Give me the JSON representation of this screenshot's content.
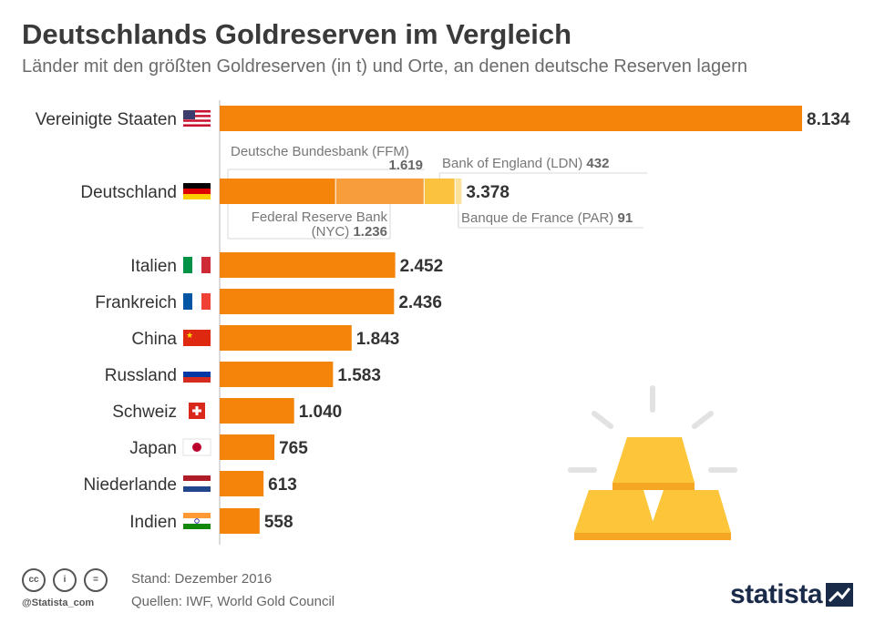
{
  "header": {
    "title": "Deutschlands Goldreserven im Vergleich",
    "subtitle": "Länder mit den größten Goldreserven (in t) und Orte, an denen deutsche Reserven lagern"
  },
  "chart_data": {
    "type": "bar",
    "orientation": "horizontal",
    "title": "Deutschlands Goldreserven im Vergleich",
    "unit": "t",
    "xlim": [
      0,
      8134
    ],
    "categories": [
      "Vereinigte Staaten",
      "Deutschland",
      "Italien",
      "Frankreich",
      "China",
      "Russland",
      "Schweiz",
      "Japan",
      "Niederlande",
      "Indien"
    ],
    "values": [
      8134,
      3378,
      2452,
      2436,
      1843,
      1583,
      1040,
      765,
      613,
      558
    ],
    "value_labels": [
      "8.134",
      "3.378",
      "2.452",
      "2.436",
      "1.843",
      "1.583",
      "1.040",
      "765",
      "613",
      "558"
    ],
    "flags": [
      "us-flag-icon",
      "de-flag-icon",
      "it-flag-icon",
      "fr-flag-icon",
      "cn-flag-icon",
      "ru-flag-icon",
      "ch-flag-icon",
      "jp-flag-icon",
      "nl-flag-icon",
      "in-flag-icon"
    ],
    "germany_breakdown": [
      {
        "name": "Deutsche Bundesbank (FFM)",
        "value": 1619,
        "value_label": "1.619",
        "color": "#f5850a"
      },
      {
        "name": "Federal Reserve Bank (NYC)",
        "name_lines": [
          "Federal Reserve Bank",
          "(NYC)"
        ],
        "value": 1236,
        "value_label": "1.236",
        "color": "#f79d3c"
      },
      {
        "name": "Bank of England (LDN)",
        "value": 432,
        "value_label": "432",
        "color": "#fbc23f"
      },
      {
        "name": "Banque de France (PAR)",
        "value": 91,
        "value_label": "91",
        "color": "#fde09a"
      }
    ]
  },
  "colors": {
    "bar": "#f5850a",
    "value_text": "#333333",
    "gold": "#fbbf2f",
    "gold_dark": "#f5a623"
  },
  "illustration": {
    "icon": "gold-bars-icon"
  },
  "footer": {
    "license_icons": [
      "cc-icon",
      "by-icon",
      "nd-icon"
    ],
    "handle": "@Statista_com",
    "stand": "Stand: Dezember 2016",
    "sources": "Quellen: IWF, World Gold Council",
    "logo": "statista"
  }
}
